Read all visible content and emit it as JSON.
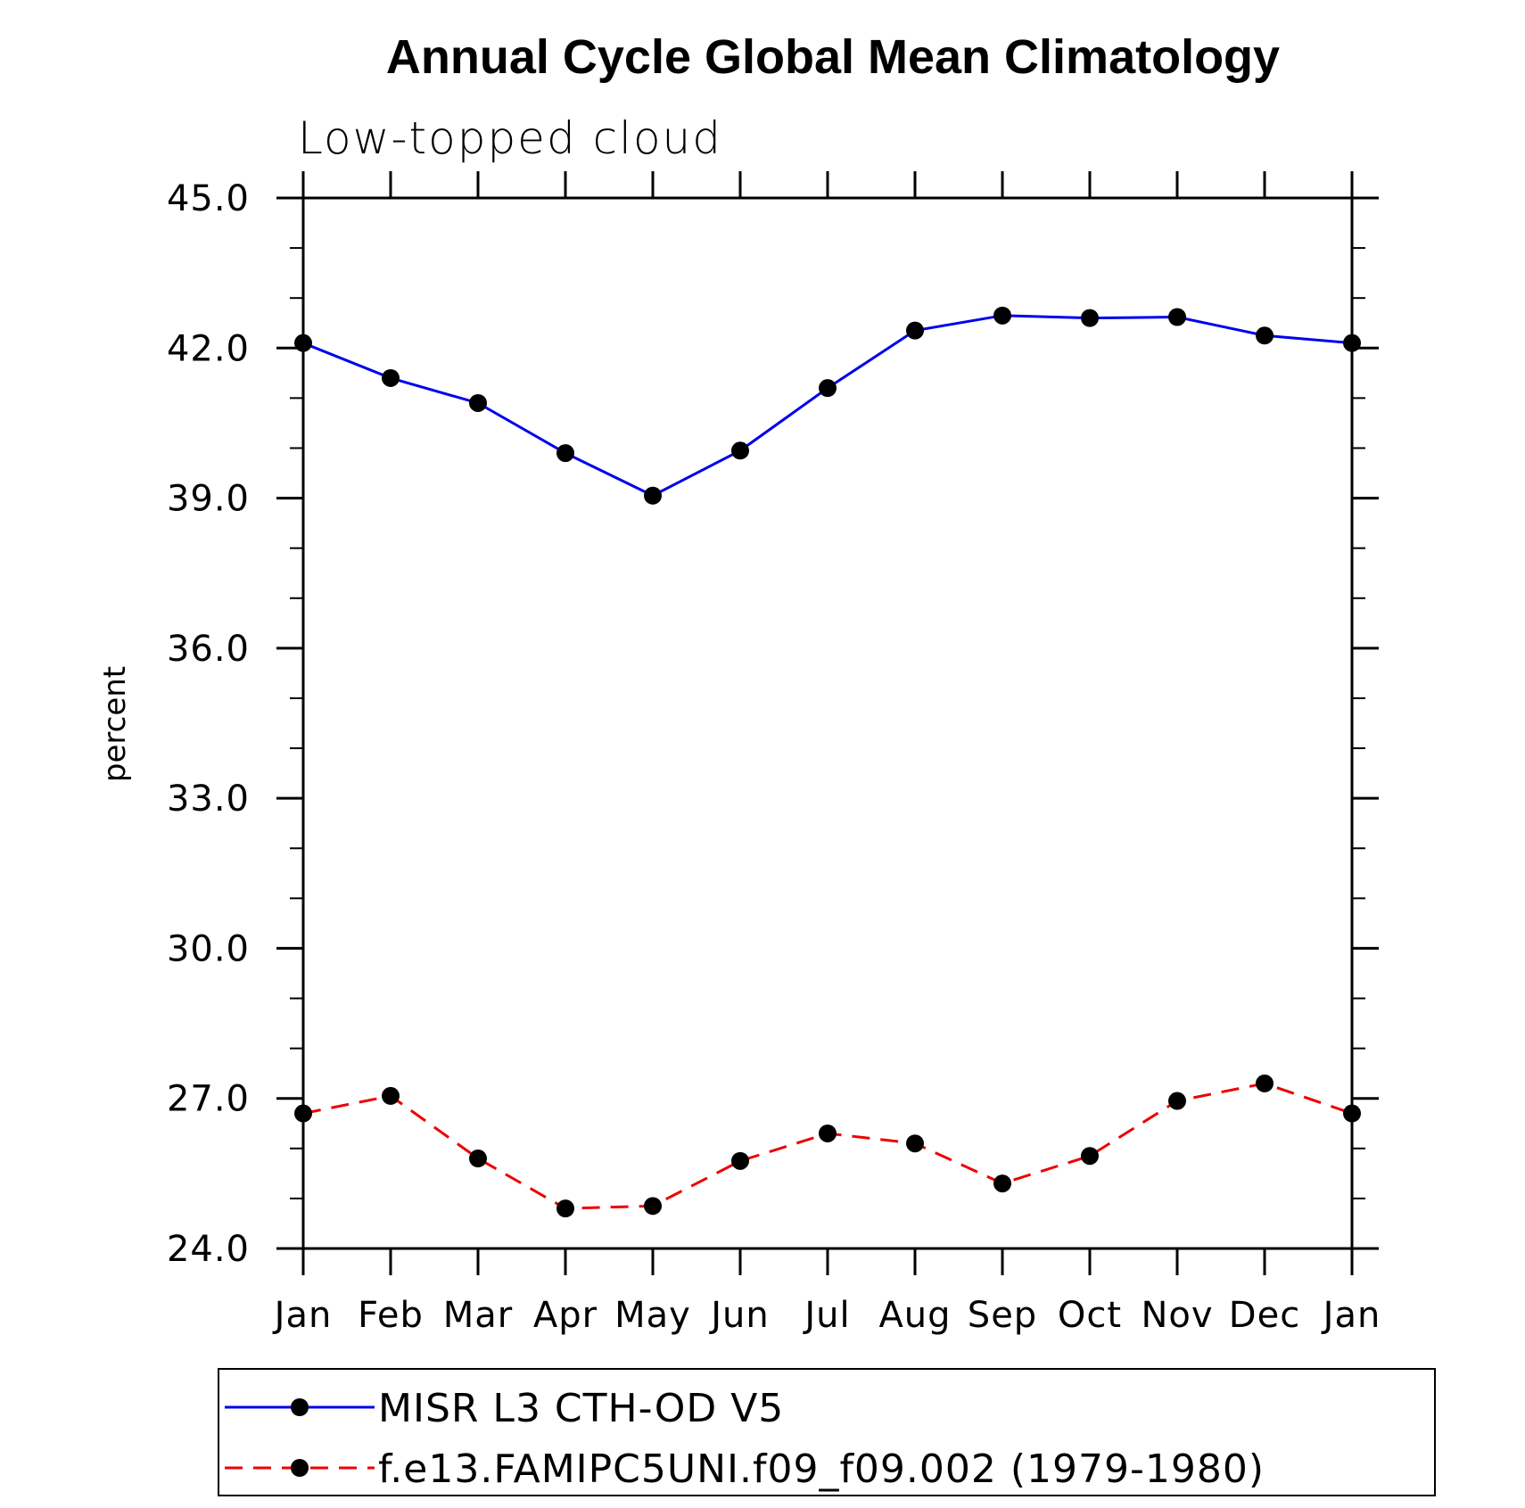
{
  "chart_data": {
    "type": "line",
    "title": "Annual Cycle Global Mean Climatology",
    "subtitle": "Low-topped cloud",
    "xlabel": "",
    "ylabel": "percent",
    "categories": [
      "Jan",
      "Feb",
      "Mar",
      "Apr",
      "May",
      "Jun",
      "Jul",
      "Aug",
      "Sep",
      "Oct",
      "Nov",
      "Dec",
      "Jan"
    ],
    "ylim": [
      24.0,
      45.0
    ],
    "yticks": [
      "24.0",
      "27.0",
      "30.0",
      "33.0",
      "36.0",
      "39.0",
      "42.0",
      "45.0"
    ],
    "grid": false,
    "legend_position": "bottom",
    "series": [
      {
        "name": "MISR L3 CTH-OD V5",
        "color": "#0000ee",
        "dash": "solid",
        "values": [
          42.1,
          41.4,
          40.9,
          39.9,
          39.05,
          39.95,
          41.2,
          42.35,
          42.65,
          42.6,
          42.62,
          42.25,
          42.1
        ]
      },
      {
        "name": "f.e13.FAMIPC5UNI.f09_f09.002 (1979-1980)",
        "color": "#ee0000",
        "dash": "dashed",
        "values": [
          26.7,
          27.05,
          25.8,
          24.8,
          24.85,
          25.75,
          26.3,
          26.1,
          25.3,
          25.85,
          26.95,
          27.3,
          26.7
        ]
      }
    ]
  }
}
